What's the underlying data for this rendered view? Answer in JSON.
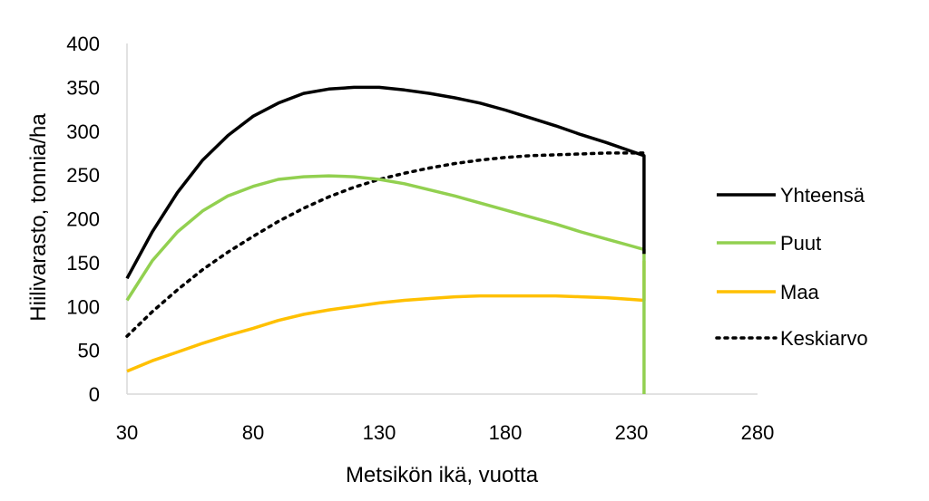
{
  "chart_data": {
    "type": "line",
    "xlabel": "Metsikön ikä, vuotta",
    "ylabel": "Hiilivarasto, tonnia/ha",
    "xlim": [
      30,
      280
    ],
    "ylim": [
      0,
      400
    ],
    "x_ticks": [
      "30",
      "80",
      "130",
      "180",
      "230",
      "280"
    ],
    "y_ticks": [
      "0",
      "50",
      "100",
      "150",
      "200",
      "250",
      "300",
      "350",
      "400"
    ],
    "legend_position": "right",
    "grid": false,
    "series": [
      {
        "name": "Yhteensä",
        "color": "#000000",
        "style": "solid",
        "x": [
          30,
          40,
          50,
          60,
          70,
          80,
          90,
          100,
          110,
          120,
          130,
          140,
          150,
          160,
          170,
          180,
          190,
          200,
          210,
          220,
          230,
          235,
          235
        ],
        "y": [
          132,
          185,
          230,
          267,
          295,
          317,
          332,
          343,
          348,
          350,
          350,
          347,
          343,
          338,
          332,
          324,
          315,
          306,
          296,
          287,
          277,
          272,
          160
        ]
      },
      {
        "name": "Puut",
        "color": "#92d050",
        "style": "solid",
        "x": [
          30,
          40,
          50,
          60,
          70,
          80,
          90,
          100,
          110,
          120,
          130,
          140,
          150,
          160,
          170,
          180,
          190,
          200,
          210,
          220,
          230,
          235,
          235
        ],
        "y": [
          107,
          152,
          185,
          209,
          226,
          237,
          245,
          248,
          249,
          248,
          245,
          240,
          233,
          226,
          218,
          210,
          202,
          194,
          185,
          177,
          169,
          165,
          0
        ]
      },
      {
        "name": "Maa",
        "color": "#ffc000",
        "style": "solid",
        "x": [
          30,
          40,
          50,
          60,
          70,
          80,
          90,
          100,
          110,
          120,
          130,
          140,
          150,
          160,
          170,
          180,
          190,
          200,
          210,
          220,
          230,
          235,
          235
        ],
        "y": [
          26,
          38,
          48,
          58,
          67,
          75,
          84,
          91,
          96,
          100,
          104,
          107,
          109,
          111,
          112,
          112,
          112,
          112,
          111,
          110,
          108,
          107,
          152
        ]
      },
      {
        "name": "Keskiarvo",
        "color": "#000000",
        "style": "dotted",
        "x": [
          30,
          40,
          50,
          60,
          70,
          80,
          90,
          100,
          110,
          120,
          130,
          140,
          150,
          160,
          170,
          180,
          190,
          200,
          210,
          220,
          230,
          235
        ],
        "y": [
          66,
          94,
          119,
          142,
          162,
          180,
          197,
          212,
          225,
          236,
          245,
          252,
          258,
          263,
          267,
          270,
          272,
          273,
          274,
          275,
          275,
          275
        ]
      }
    ]
  }
}
